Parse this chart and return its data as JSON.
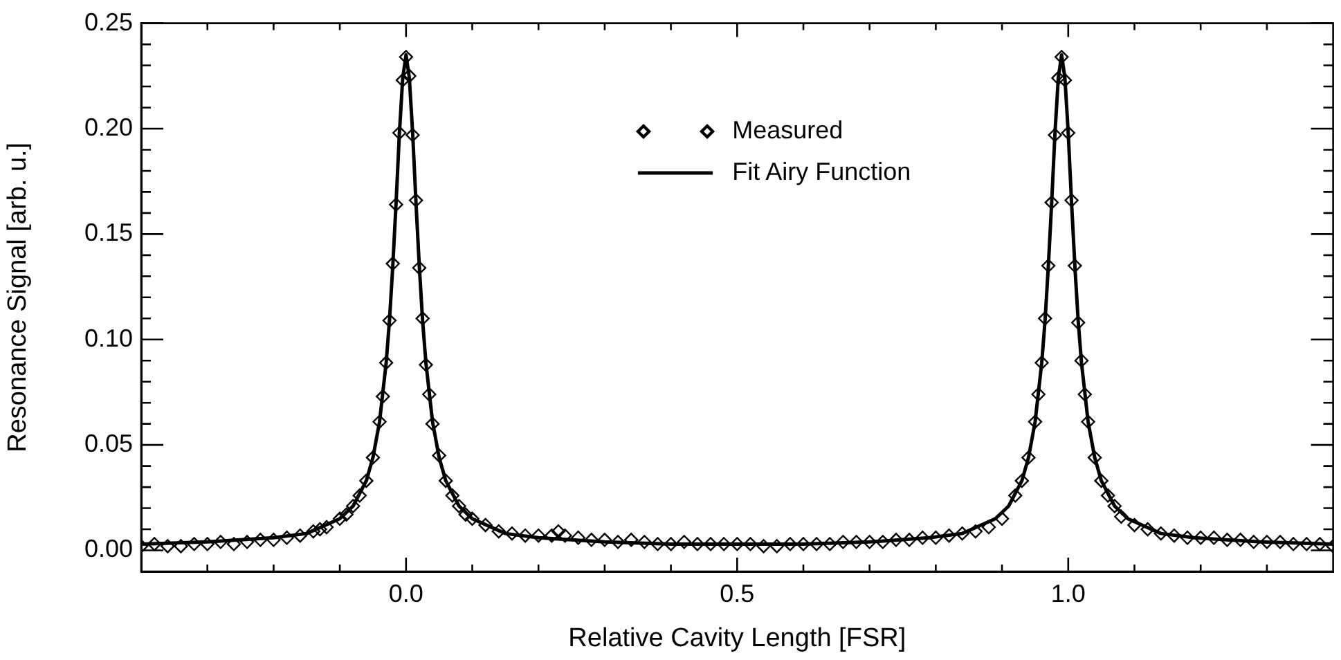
{
  "chart_data": {
    "type": "scatter",
    "xlabel": "Relative Cavity Length [FSR]",
    "ylabel": "Resonance Signal [arb. u.]",
    "xlim": [
      -0.4,
      1.4
    ],
    "ylim": [
      -0.01,
      0.25
    ],
    "xticks": [
      {
        "value": -0.3,
        "label": null
      },
      {
        "value": -0.2,
        "label": null
      },
      {
        "value": -0.1,
        "label": null
      },
      {
        "value": 0,
        "label": "0.0"
      },
      {
        "value": 0.1,
        "label": null
      },
      {
        "value": 0.2,
        "label": null
      },
      {
        "value": 0.3,
        "label": null
      },
      {
        "value": 0.4,
        "label": null
      },
      0.5,
      {
        "value": 0.6,
        "label": null
      },
      {
        "value": 0.7,
        "label": null
      },
      {
        "value": 0.8,
        "label": null
      },
      {
        "value": 0.9,
        "label": null
      },
      {
        "value": 1,
        "label": "1.0"
      },
      {
        "value": 1.1,
        "label": null
      },
      {
        "value": 1.2,
        "label": null
      },
      {
        "value": 1.3,
        "label": null
      }
    ],
    "yticks": [
      {
        "value": 0,
        "label": "0.00"
      },
      {
        "value": 0.01,
        "label": null
      },
      {
        "value": 0.02,
        "label": null
      },
      {
        "value": 0.03,
        "label": null
      },
      {
        "value": 0.04,
        "label": null
      },
      0.05,
      {
        "value": 0.06,
        "label": null
      },
      {
        "value": 0.07,
        "label": null
      },
      {
        "value": 0.08,
        "label": null
      },
      {
        "value": 0.09,
        "label": null
      },
      {
        "value": 0.1,
        "label": "0.10"
      },
      {
        "value": 0.11,
        "label": null
      },
      {
        "value": 0.12,
        "label": null
      },
      {
        "value": 0.13,
        "label": null
      },
      {
        "value": 0.14,
        "label": null
      },
      0.15,
      {
        "value": 0.16,
        "label": null
      },
      {
        "value": 0.17,
        "label": null
      },
      {
        "value": 0.18,
        "label": null
      },
      {
        "value": 0.19,
        "label": null
      },
      {
        "value": 0.2,
        "label": "0.20"
      },
      {
        "value": 0.21,
        "label": null
      },
      {
        "value": 0.22,
        "label": null
      },
      {
        "value": 0.23,
        "label": null
      },
      {
        "value": 0.24,
        "label": null
      },
      0.25
    ],
    "grid": false,
    "legend": "top",
    "marker": "diamond",
    "series": [
      {
        "name": "Measured",
        "color": "#000000",
        "x": [
          -0.4,
          -0.38,
          -0.36,
          -0.34,
          -0.32,
          -0.3,
          -0.28,
          -0.26,
          -0.24,
          -0.22,
          -0.2,
          -0.18,
          -0.16,
          -0.14,
          -0.13,
          -0.12,
          -0.1,
          -0.09,
          -0.08,
          -0.07,
          -0.06,
          -0.05,
          -0.04,
          -0.035,
          -0.03,
          -0.025,
          -0.02,
          -0.015,
          -0.01,
          -0.005,
          0,
          0.005,
          0.01,
          0.015,
          0.02,
          0.025,
          0.03,
          0.035,
          0.04,
          0.05,
          0.06,
          0.07,
          0.08,
          0.09,
          0.1,
          0.12,
          0.14,
          0.16,
          0.18,
          0.2,
          0.22,
          0.23,
          0.24,
          0.26,
          0.28,
          0.3,
          0.32,
          0.34,
          0.36,
          0.38,
          0.4,
          0.42,
          0.44,
          0.46,
          0.48,
          0.5,
          0.52,
          0.54,
          0.56,
          0.58,
          0.6,
          0.62,
          0.64,
          0.66,
          0.68,
          0.7,
          0.72,
          0.74,
          0.76,
          0.78,
          0.8,
          0.82,
          0.84,
          0.86,
          0.88,
          0.9,
          0.92,
          0.93,
          0.94,
          0.95,
          0.955,
          0.96,
          0.965,
          0.97,
          0.975,
          0.98,
          0.985,
          0.99,
          0.995,
          1.0,
          1.005,
          1.01,
          1.015,
          1.02,
          1.025,
          1.03,
          1.04,
          1.05,
          1.06,
          1.07,
          1.08,
          1.1,
          1.12,
          1.14,
          1.16,
          1.18,
          1.2,
          1.22,
          1.24,
          1.26,
          1.28,
          1.3,
          1.32,
          1.34,
          1.36,
          1.38,
          1.4
        ],
        "values": [
          0.002,
          0.003,
          0.002,
          0.002,
          0.003,
          0.003,
          0.004,
          0.003,
          0.004,
          0.005,
          0.005,
          0.006,
          0.007,
          0.009,
          0.01,
          0.011,
          0.015,
          0.017,
          0.021,
          0.026,
          0.033,
          0.044,
          0.061,
          0.073,
          0.089,
          0.109,
          0.136,
          0.164,
          0.198,
          0.223,
          0.234,
          0.225,
          0.197,
          0.166,
          0.134,
          0.11,
          0.088,
          0.074,
          0.06,
          0.045,
          0.033,
          0.026,
          0.021,
          0.017,
          0.015,
          0.012,
          0.009,
          0.008,
          0.007,
          0.007,
          0.007,
          0.009,
          0.007,
          0.006,
          0.005,
          0.005,
          0.004,
          0.005,
          0.004,
          0.003,
          0.003,
          0.004,
          0.003,
          0.003,
          0.003,
          0.003,
          0.003,
          0.002,
          0.002,
          0.003,
          0.003,
          0.003,
          0.003,
          0.004,
          0.004,
          0.004,
          0.004,
          0.005,
          0.005,
          0.006,
          0.006,
          0.007,
          0.008,
          0.009,
          0.011,
          0.015,
          0.026,
          0.033,
          0.044,
          0.061,
          0.074,
          0.089,
          0.11,
          0.135,
          0.165,
          0.197,
          0.224,
          0.234,
          0.223,
          0.198,
          0.166,
          0.135,
          0.108,
          0.09,
          0.074,
          0.061,
          0.044,
          0.033,
          0.026,
          0.021,
          0.016,
          0.012,
          0.01,
          0.008,
          0.007,
          0.006,
          0.006,
          0.006,
          0.005,
          0.005,
          0.004,
          0.004,
          0.004,
          0.003,
          0.003,
          0.003,
          0.002
        ]
      },
      {
        "name": "Fit Airy Function",
        "type": "line",
        "marker": "none",
        "line_style": "solid",
        "color": "#000000",
        "x": [
          -0.4,
          -0.3,
          -0.2,
          -0.15,
          -0.1,
          -0.08,
          -0.06,
          -0.05,
          -0.04,
          -0.03,
          -0.025,
          -0.02,
          -0.015,
          -0.01,
          -0.005,
          0,
          0.005,
          0.01,
          0.015,
          0.02,
          0.025,
          0.03,
          0.04,
          0.05,
          0.06,
          0.08,
          0.1,
          0.15,
          0.2,
          0.3,
          0.4,
          0.5,
          0.6,
          0.7,
          0.79,
          0.84,
          0.89,
          0.91,
          0.93,
          0.94,
          0.95,
          0.96,
          0.965,
          0.97,
          0.975,
          0.98,
          0.985,
          0.99,
          0.995,
          1.0,
          1.005,
          1.01,
          1.015,
          1.02,
          1.03,
          1.04,
          1.05,
          1.07,
          1.09,
          1.14,
          1.19,
          1.29,
          1.4
        ],
        "values": [
          0.003,
          0.004,
          0.006,
          0.008,
          0.015,
          0.021,
          0.033,
          0.044,
          0.061,
          0.089,
          0.109,
          0.135,
          0.165,
          0.198,
          0.224,
          0.235,
          0.224,
          0.198,
          0.165,
          0.135,
          0.109,
          0.089,
          0.061,
          0.044,
          0.033,
          0.021,
          0.015,
          0.008,
          0.006,
          0.004,
          0.003,
          0.003,
          0.003,
          0.004,
          0.006,
          0.008,
          0.015,
          0.021,
          0.033,
          0.044,
          0.061,
          0.089,
          0.109,
          0.135,
          0.165,
          0.198,
          0.224,
          0.235,
          0.224,
          0.198,
          0.165,
          0.135,
          0.109,
          0.089,
          0.061,
          0.044,
          0.033,
          0.021,
          0.015,
          0.008,
          0.006,
          0.004,
          0.003
        ]
      }
    ]
  }
}
